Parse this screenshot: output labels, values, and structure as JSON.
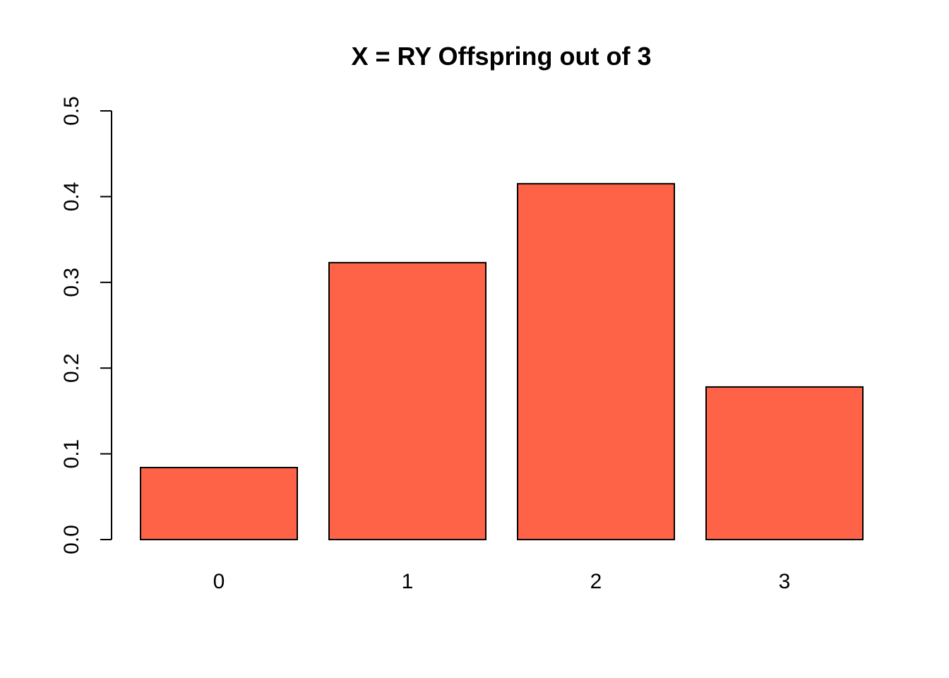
{
  "chart_data": {
    "type": "bar",
    "title": "X = RY Offspring out of 3",
    "xlabel": "",
    "ylabel": "",
    "categories": [
      "0",
      "1",
      "2",
      "3"
    ],
    "values": [
      0.084,
      0.323,
      0.415,
      0.178
    ],
    "ylim": [
      0,
      0.5
    ],
    "yticks": [
      0.0,
      0.1,
      0.2,
      0.3,
      0.4,
      0.5
    ],
    "ytick_labels": [
      "0.0",
      "0.1",
      "0.2",
      "0.3",
      "0.4",
      "0.5"
    ],
    "bar_color": "#FF6347",
    "grid": false,
    "legend": "none"
  }
}
